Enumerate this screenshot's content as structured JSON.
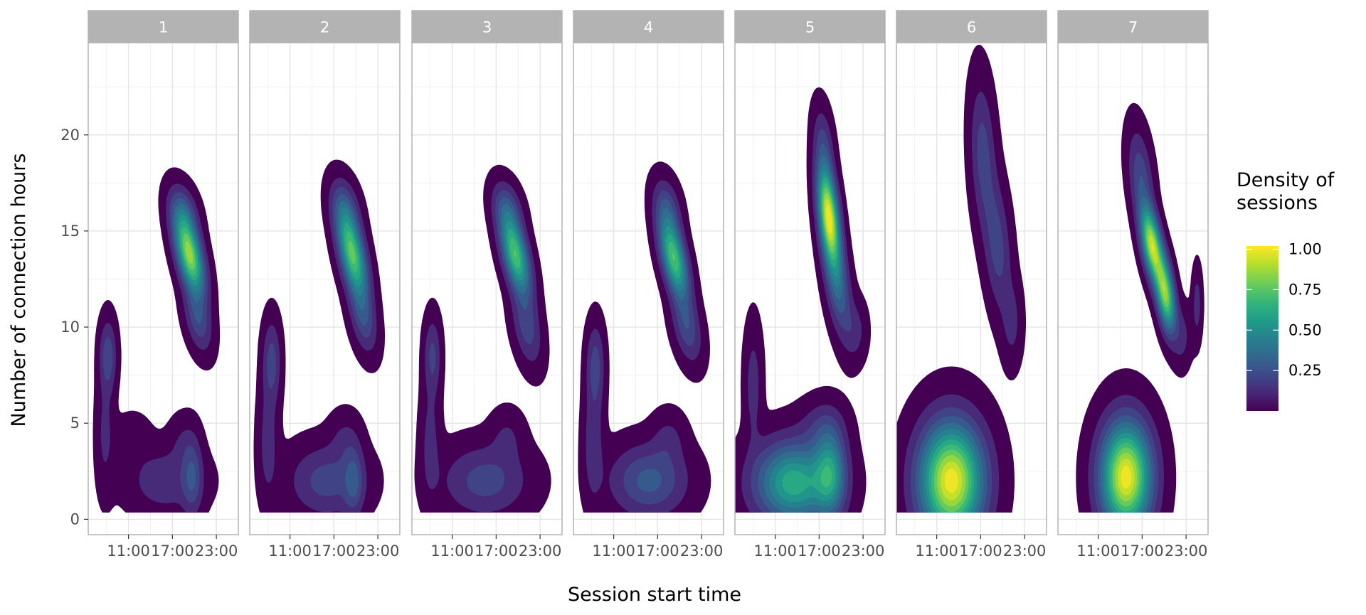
{
  "chart_data": {
    "type": "density-contour",
    "xlabel": "Session start time",
    "ylabel": "Number of connection hours",
    "x_ticks": [
      "11:00",
      "17:00",
      "23:00"
    ],
    "x_tick_hours": [
      11,
      17,
      23
    ],
    "xlim_hours": [
      5.5,
      26
    ],
    "y_ticks": [
      0,
      5,
      10,
      15,
      20
    ],
    "ylim": [
      -0.8,
      24.8
    ],
    "grid": true,
    "legend": {
      "title": "Density of\nsessions",
      "title_lines": [
        "Density of",
        "sessions"
      ],
      "position": "right",
      "ticks": [
        1.0,
        0.75,
        0.5,
        0.25
      ],
      "tick_labels": [
        "1.00",
        "0.75",
        "0.50",
        "0.25"
      ],
      "range": [
        0.0,
        1.02
      ],
      "palette": [
        "#440154",
        "#482878",
        "#3e4a89",
        "#31688e",
        "#26828e",
        "#1f9e89",
        "#35b779",
        "#6ece58",
        "#b5de2b",
        "#fde725"
      ]
    },
    "panels": [
      {
        "label": "1",
        "clusters": [
          {
            "x": 19.3,
            "y": 13.8,
            "sx": 1.35,
            "sy": 1.4,
            "rho": -0.55,
            "peak": 0.85
          },
          {
            "x": 18.5,
            "y": 16.0,
            "sx": 1.3,
            "sy": 0.9,
            "rho": -0.3,
            "peak": 0.2
          },
          {
            "x": 20.5,
            "y": 10.4,
            "sx": 1.2,
            "sy": 1.1,
            "rho": -0.4,
            "peak": 0.22
          },
          {
            "x": 8.2,
            "y": 8.5,
            "sx": 0.75,
            "sy": 1.2,
            "rho": 0.0,
            "peak": 0.22
          },
          {
            "x": 7.8,
            "y": 4.5,
            "sx": 0.8,
            "sy": 2.0,
            "rho": 0.0,
            "peak": 0.1
          },
          {
            "x": 11.5,
            "y": 4.2,
            "sx": 1.6,
            "sy": 0.8,
            "rho": 0.0,
            "peak": 0.06
          },
          {
            "x": 16.0,
            "y": 2.0,
            "sx": 3.3,
            "sy": 1.1,
            "rho": 0.0,
            "peak": 0.14
          },
          {
            "x": 19.7,
            "y": 2.2,
            "sx": 0.9,
            "sy": 1.3,
            "rho": 0.0,
            "peak": 0.2
          },
          {
            "x": 18.5,
            "y": 4.0,
            "sx": 1.3,
            "sy": 0.9,
            "rho": 0.0,
            "peak": 0.07
          }
        ]
      },
      {
        "label": "2",
        "clusters": [
          {
            "x": 19.5,
            "y": 13.8,
            "sx": 1.35,
            "sy": 1.5,
            "rho": -0.55,
            "peak": 0.75
          },
          {
            "x": 18.5,
            "y": 16.2,
            "sx": 1.3,
            "sy": 1.0,
            "rho": -0.3,
            "peak": 0.2
          },
          {
            "x": 21.0,
            "y": 10.5,
            "sx": 1.2,
            "sy": 1.2,
            "rho": -0.4,
            "peak": 0.22
          },
          {
            "x": 8.5,
            "y": 8.2,
            "sx": 0.8,
            "sy": 1.4,
            "rho": 0.0,
            "peak": 0.2
          },
          {
            "x": 8.0,
            "y": 4.0,
            "sx": 0.9,
            "sy": 2.0,
            "rho": 0.0,
            "peak": 0.12
          },
          {
            "x": 16.0,
            "y": 2.0,
            "sx": 3.3,
            "sy": 1.2,
            "rho": 0.0,
            "peak": 0.2
          },
          {
            "x": 19.7,
            "y": 2.0,
            "sx": 0.9,
            "sy": 1.2,
            "rho": 0.0,
            "peak": 0.2
          },
          {
            "x": 18.5,
            "y": 4.2,
            "sx": 1.4,
            "sy": 0.9,
            "rho": 0.0,
            "peak": 0.08
          }
        ]
      },
      {
        "label": "3",
        "clusters": [
          {
            "x": 19.6,
            "y": 13.8,
            "sx": 1.35,
            "sy": 1.4,
            "rho": -0.55,
            "peak": 0.72
          },
          {
            "x": 18.5,
            "y": 16.2,
            "sx": 1.3,
            "sy": 0.9,
            "rho": -0.3,
            "peak": 0.2
          },
          {
            "x": 21.2,
            "y": 10.0,
            "sx": 1.3,
            "sy": 1.3,
            "rho": -0.4,
            "peak": 0.2
          },
          {
            "x": 8.3,
            "y": 8.5,
            "sx": 0.75,
            "sy": 1.3,
            "rho": 0.0,
            "peak": 0.18
          },
          {
            "x": 8.0,
            "y": 4.0,
            "sx": 0.9,
            "sy": 2.0,
            "rho": 0.0,
            "peak": 0.11
          },
          {
            "x": 15.5,
            "y": 2.0,
            "sx": 3.8,
            "sy": 1.2,
            "rho": 0.0,
            "peak": 0.2
          },
          {
            "x": 18.5,
            "y": 4.3,
            "sx": 1.5,
            "sy": 0.9,
            "rho": 0.0,
            "peak": 0.08
          }
        ]
      },
      {
        "label": "4",
        "clusters": [
          {
            "x": 19.2,
            "y": 13.6,
            "sx": 1.3,
            "sy": 1.4,
            "rho": -0.55,
            "peak": 0.72
          },
          {
            "x": 18.3,
            "y": 16.2,
            "sx": 1.2,
            "sy": 1.0,
            "rho": -0.3,
            "peak": 0.2
          },
          {
            "x": 21.0,
            "y": 10.0,
            "sx": 1.3,
            "sy": 1.2,
            "rho": -0.4,
            "peak": 0.22
          },
          {
            "x": 8.5,
            "y": 8.0,
            "sx": 0.8,
            "sy": 1.4,
            "rho": 0.0,
            "peak": 0.2
          },
          {
            "x": 8.2,
            "y": 4.0,
            "sx": 0.9,
            "sy": 2.0,
            "rho": 0.0,
            "peak": 0.14
          },
          {
            "x": 15.8,
            "y": 2.0,
            "sx": 3.4,
            "sy": 1.2,
            "rho": 0.0,
            "peak": 0.27
          },
          {
            "x": 18.5,
            "y": 4.2,
            "sx": 1.5,
            "sy": 0.9,
            "rho": 0.0,
            "peak": 0.09
          }
        ]
      },
      {
        "label": "5",
        "clusters": [
          {
            "x": 18.3,
            "y": 15.8,
            "sx": 1.0,
            "sy": 1.7,
            "rho": -0.45,
            "peak": 0.98
          },
          {
            "x": 19.5,
            "y": 12.3,
            "sx": 1.2,
            "sy": 1.8,
            "rho": -0.5,
            "peak": 0.32
          },
          {
            "x": 17.6,
            "y": 19.5,
            "sx": 0.9,
            "sy": 1.3,
            "rho": -0.3,
            "peak": 0.16
          },
          {
            "x": 22.0,
            "y": 9.8,
            "sx": 1.0,
            "sy": 1.0,
            "rho": 0.0,
            "peak": 0.1
          },
          {
            "x": 8.0,
            "y": 7.0,
            "sx": 0.8,
            "sy": 2.0,
            "rho": 0.0,
            "peak": 0.12
          },
          {
            "x": 13.5,
            "y": 1.9,
            "sx": 3.5,
            "sy": 1.4,
            "rho": 0.0,
            "peak": 0.62
          },
          {
            "x": 18.5,
            "y": 2.4,
            "sx": 1.4,
            "sy": 1.5,
            "rho": 0.0,
            "peak": 0.45
          },
          {
            "x": 17.5,
            "y": 4.8,
            "sx": 2.0,
            "sy": 0.9,
            "rho": 0.0,
            "peak": 0.12
          }
        ]
      },
      {
        "label": "6",
        "clusters": [
          {
            "x": 17.3,
            "y": 19.0,
            "sx": 1.1,
            "sy": 2.4,
            "rho": -0.2,
            "peak": 0.2
          },
          {
            "x": 19.3,
            "y": 14.2,
            "sx": 1.2,
            "sy": 2.2,
            "rho": -0.3,
            "peak": 0.2
          },
          {
            "x": 21.3,
            "y": 10.2,
            "sx": 0.9,
            "sy": 1.4,
            "rho": 0.0,
            "peak": 0.1
          },
          {
            "x": 13.0,
            "y": 2.0,
            "sx": 2.9,
            "sy": 2.0,
            "rho": 0.0,
            "peak": 1.0
          }
        ]
      },
      {
        "label": "7",
        "clusters": [
          {
            "x": 18.3,
            "y": 14.3,
            "sx": 1.0,
            "sy": 1.3,
            "rho": -0.5,
            "peak": 0.9
          },
          {
            "x": 20.2,
            "y": 11.7,
            "sx": 0.9,
            "sy": 1.3,
            "rho": -0.45,
            "peak": 0.8
          },
          {
            "x": 16.8,
            "y": 17.8,
            "sx": 1.1,
            "sy": 1.6,
            "rho": -0.35,
            "peak": 0.22
          },
          {
            "x": 22.5,
            "y": 9.5,
            "sx": 0.8,
            "sy": 1.0,
            "rho": 0.0,
            "peak": 0.1
          },
          {
            "x": 24.5,
            "y": 11.2,
            "sx": 0.45,
            "sy": 1.2,
            "rho": 0.0,
            "peak": 0.12
          },
          {
            "x": 14.8,
            "y": 2.2,
            "sx": 2.3,
            "sy": 1.9,
            "rho": 0.0,
            "peak": 1.0
          }
        ]
      }
    ]
  }
}
